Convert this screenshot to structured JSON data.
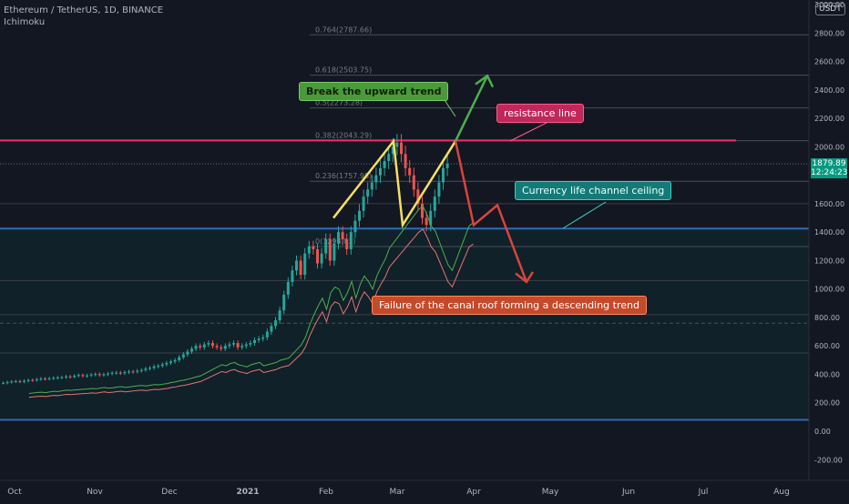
{
  "header": {
    "symbol_line": "Ethereum / TetherUS, 1D, BINANCE",
    "indicator": "Ichimoku",
    "currency": "USDT"
  },
  "price_tag": {
    "price": "1879.89",
    "countdown": "12:24:23"
  },
  "colors": {
    "background": "#131722",
    "up": "#26a69a",
    "down": "#ef5350",
    "resistance": "#f0306a",
    "channel": "#2e6bb0",
    "cloud_leading_a": "#4caf50",
    "cloud_leading_b": "#e57373",
    "yellow": "#f6e05e",
    "green_arrow": "#4caf50",
    "red_arrow": "#d9453a"
  },
  "annotations": {
    "break_trend": "Break the upward trend",
    "resistance_line": "resistance line",
    "channel_ceiling": "Currency life channel ceiling",
    "failure": "Failure of the canal roof forming a descending trend"
  },
  "chart_data": {
    "type": "candlestick",
    "ylim": [
      -280,
      3200
    ],
    "y_ticks": [
      "-200.00",
      "0.00",
      "200.00",
      "400.00",
      "600.00",
      "800.00",
      "1000.00",
      "1200.00",
      "1400.00",
      "1600.00",
      "1800.00",
      "2000.00",
      "2200.00",
      "2400.00",
      "2600.00",
      "2800.00",
      "3000.00"
    ],
    "x_ticks": [
      "Oct",
      "Nov",
      "Dec",
      "2021",
      "Feb",
      "Mar",
      "Apr",
      "May",
      "Jun",
      "Jul",
      "Aug"
    ],
    "fib_levels": [
      {
        "label": "0.764(2787.66)",
        "value": 2787.66
      },
      {
        "label": "0.618(2503.75)",
        "value": 2503.75
      },
      {
        "label": "0.5(2273.28)",
        "value": 2273.28
      },
      {
        "label": "0.382(2043.29)",
        "value": 2043.29
      },
      {
        "label": "0.236(1757.98)",
        "value": 1757.98
      },
      {
        "label": "0(1298.83)",
        "value": 1298.83
      }
    ],
    "horizontal_levels": [
      {
        "name": "resistance",
        "value": 2045
      },
      {
        "name": "channel_ceiling",
        "value": 1425
      },
      {
        "name": "channel_floor",
        "value": 80
      }
    ],
    "ohlc_close": [
      340,
      345,
      350,
      352,
      348,
      355,
      360,
      358,
      365,
      370,
      368,
      372,
      375,
      378,
      380,
      385,
      382,
      390,
      395,
      388,
      392,
      398,
      402,
      395,
      400,
      405,
      410,
      412,
      408,
      415,
      420,
      418,
      425,
      430,
      440,
      445,
      455,
      460,
      470,
      480,
      490,
      500,
      520,
      540,
      560,
      580,
      600,
      590,
      610,
      620,
      600,
      590,
      580,
      600,
      610,
      620,
      590,
      600,
      610,
      620,
      640,
      650,
      660,
      700,
      740,
      780,
      850,
      960,
      1050,
      1130,
      1200,
      1100,
      1250,
      1300,
      1280,
      1180,
      1250,
      1350,
      1200,
      1320,
      1400,
      1350,
      1280,
      1400,
      1480,
      1550,
      1650,
      1700,
      1750,
      1800,
      1850,
      1900,
      1950,
      2000,
      2030,
      1950,
      1850,
      1800,
      1700,
      1600,
      1500,
      1450,
      1550,
      1650,
      1750,
      1850,
      1880
    ],
    "drawn_path_yellow": [
      1500,
      2040,
      1450,
      2040
    ],
    "drawn_path_green_end": 2500,
    "drawn_path_red": [
      2040,
      1450,
      1590,
      1050
    ]
  }
}
